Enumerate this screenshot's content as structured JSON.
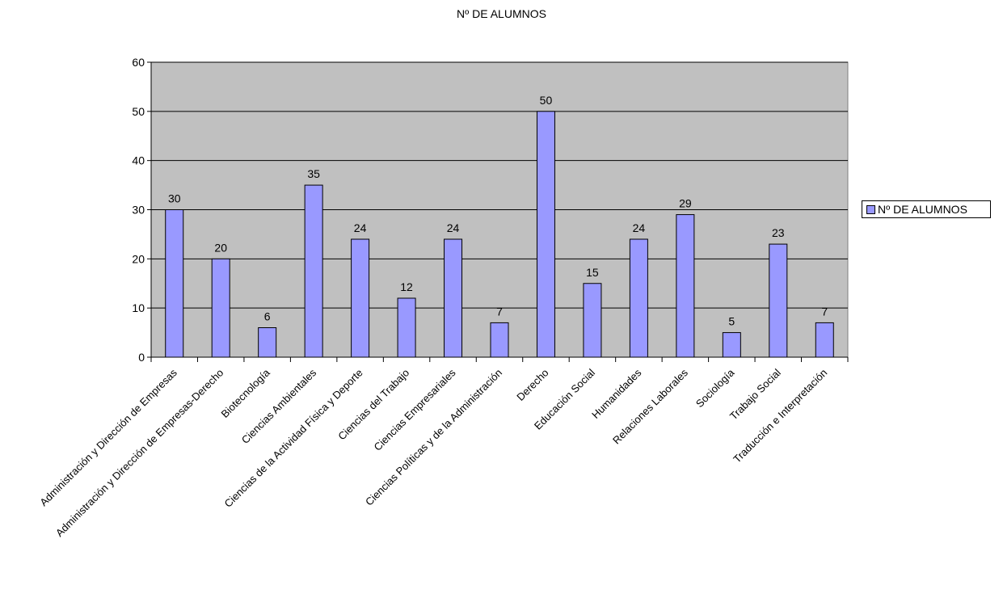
{
  "chart_data": {
    "type": "bar",
    "title": "Nº DE ALUMNOS",
    "categories": [
      "Administración y Dirección de Empresas",
      "Administración y Dirección de Empresas-Derecho",
      "Biotecnología",
      "Ciencias Ambientales",
      "Ciencias de la Actividad Física y Deporte",
      "Ciencias del Trabajo",
      "Ciencias Empresariales",
      "Ciencias Políticas y de la Administración",
      "Derecho",
      "Educación Social",
      "Humanidades",
      "Relaciones Laborales",
      "Sociología",
      "Trabajo Social",
      "Traducción e Interpretación"
    ],
    "series": [
      {
        "name": "Nº DE ALUMNOS",
        "values": [
          30,
          20,
          6,
          35,
          24,
          12,
          24,
          7,
          50,
          15,
          24,
          29,
          5,
          23,
          7
        ]
      }
    ],
    "ylim": [
      0,
      60
    ],
    "yticks": [
      0,
      10,
      20,
      30,
      40,
      50,
      60
    ],
    "grid": true,
    "legend_position": "right",
    "colors": {
      "bar": "#9999ff",
      "plot_background": "#c0c0c0",
      "bar_border": "#000000"
    }
  }
}
